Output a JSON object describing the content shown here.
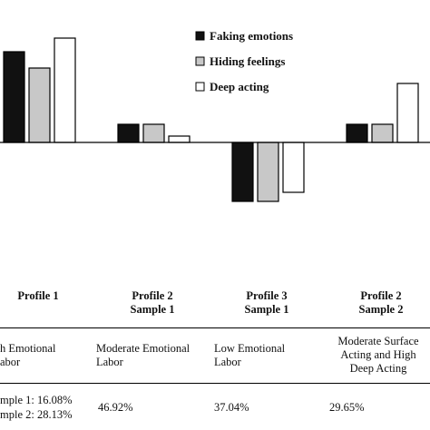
{
  "chart_data": {
    "type": "bar",
    "categories": [
      "Profile 1",
      "Profile 2\nSample 1",
      "Profile 3\nSample 1",
      "Profile 2\nSample 2"
    ],
    "series": [
      {
        "name": "Faking emotions",
        "values": [
          1.0,
          0.2,
          -0.65,
          0.2
        ],
        "color": "#111111"
      },
      {
        "name": "Hiding feelings",
        "values": [
          0.82,
          0.2,
          -0.65,
          0.2
        ],
        "color": "#c8c8c8"
      },
      {
        "name": "Deep acting",
        "values": [
          1.15,
          0.07,
          -0.55,
          0.65
        ],
        "color": "#ffffff"
      }
    ],
    "ylim": [
      -0.8,
      1.3
    ],
    "legend": "top-right",
    "grid": false
  },
  "table": {
    "descriptions": [
      "h Emotional\nabor",
      "Moderate Emotional\nLabor",
      "Low Emotional\nLabor",
      "Moderate Surface\nActing and High\nDeep Acting"
    ],
    "percentages": [
      "mple 1: 16.08%\nmple 2: 28.13%",
      "46.92%",
      "37.04%",
      "29.65%"
    ]
  }
}
